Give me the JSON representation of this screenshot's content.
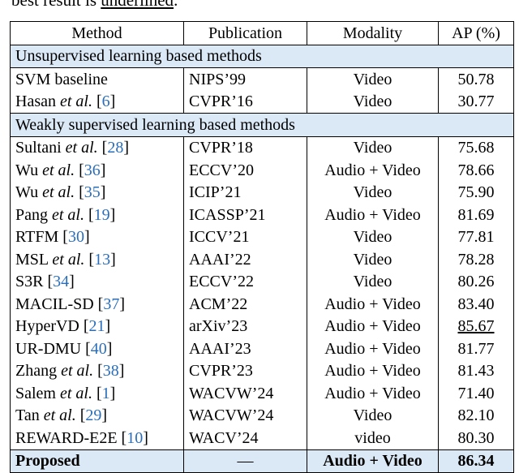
{
  "caption_fragment": {
    "prefix": "best result is ",
    "underlined_word": "underlined",
    "suffix": "."
  },
  "headers": {
    "method": "Method",
    "publication": "Publication",
    "modality": "Modality",
    "ap": "AP (%)"
  },
  "sections": {
    "unsupervised": "Unsupervised learning based methods",
    "weakly": "Weakly supervised learning based methods"
  },
  "unsupervised_rows": [
    {
      "name": "SVM baseline",
      "etal": "",
      "ref": "",
      "publication": "NIPS’99",
      "modality": "Video",
      "ap": "50.78"
    },
    {
      "name": "Hasan ",
      "etal": "et al.",
      "ref": "6",
      "publication": "CVPR’16",
      "modality": "Video",
      "ap": "30.77"
    }
  ],
  "weakly_rows": [
    {
      "name": "Sultani ",
      "etal": "et al.",
      "ref": "28",
      "publication": "CVPR’18",
      "modality": "Video",
      "ap": "75.68"
    },
    {
      "name": "Wu ",
      "etal": "et al.",
      "ref": "36",
      "publication": "ECCV’20",
      "modality": "Audio + Video",
      "ap": "78.66"
    },
    {
      "name": "Wu ",
      "etal": "et al.",
      "ref": "35",
      "publication": "ICIP’21",
      "modality": "Video",
      "ap": "75.90"
    },
    {
      "name": "Pang ",
      "etal": "et al.",
      "ref": "19",
      "publication": "ICASSP’21",
      "modality": "Audio + Video",
      "ap": "81.69"
    },
    {
      "name": "RTFM ",
      "etal": "",
      "ref": "30",
      "publication": "ICCV’21",
      "modality": "Video",
      "ap": "77.81"
    },
    {
      "name": "MSL ",
      "etal": "et al.",
      "ref": "13",
      "publication": "AAAI’22",
      "modality": "Video",
      "ap": "78.28"
    },
    {
      "name": "S3R ",
      "etal": "",
      "ref": "34",
      "publication": "ECCV’22",
      "modality": "Video",
      "ap": "80.26"
    },
    {
      "name": "MACIL-SD ",
      "etal": "",
      "ref": "37",
      "publication": "ACM’22",
      "modality": "Audio + Video",
      "ap": "83.40"
    },
    {
      "name": "HyperVD ",
      "etal": "",
      "ref": "21",
      "publication": "arXiv’23",
      "modality": "Audio + Video",
      "ap": "85.67",
      "underline": true
    },
    {
      "name": "UR-DMU ",
      "etal": "",
      "ref": "40",
      "publication": "AAAI’23",
      "modality": "Audio + Video",
      "ap": "81.77"
    },
    {
      "name": "Zhang ",
      "etal": "et al.",
      "ref": "38",
      "publication": "CVPR’23",
      "modality": "Audio + Video",
      "ap": "81.43"
    },
    {
      "name": "Salem ",
      "etal": "et al.",
      "ref": "1",
      "publication": "WACVW’24",
      "modality": "Audio + Video",
      "ap": "71.40"
    },
    {
      "name": "Tan ",
      "etal": "et al.",
      "ref": "29",
      "publication": "WACVW’24",
      "modality": "Video",
      "ap": "82.10"
    },
    {
      "name": "REWARD-E2E ",
      "etal": "",
      "ref": "10",
      "publication": "WACV’24",
      "modality": "video",
      "ap": "80.30"
    }
  ],
  "proposed_row": {
    "name": "Proposed",
    "publication": "—",
    "modality": "Audio + Video",
    "ap": "86.34"
  },
  "colors": {
    "section_bg": "#dbe8f6",
    "reference_link": "#2a6ebb"
  }
}
